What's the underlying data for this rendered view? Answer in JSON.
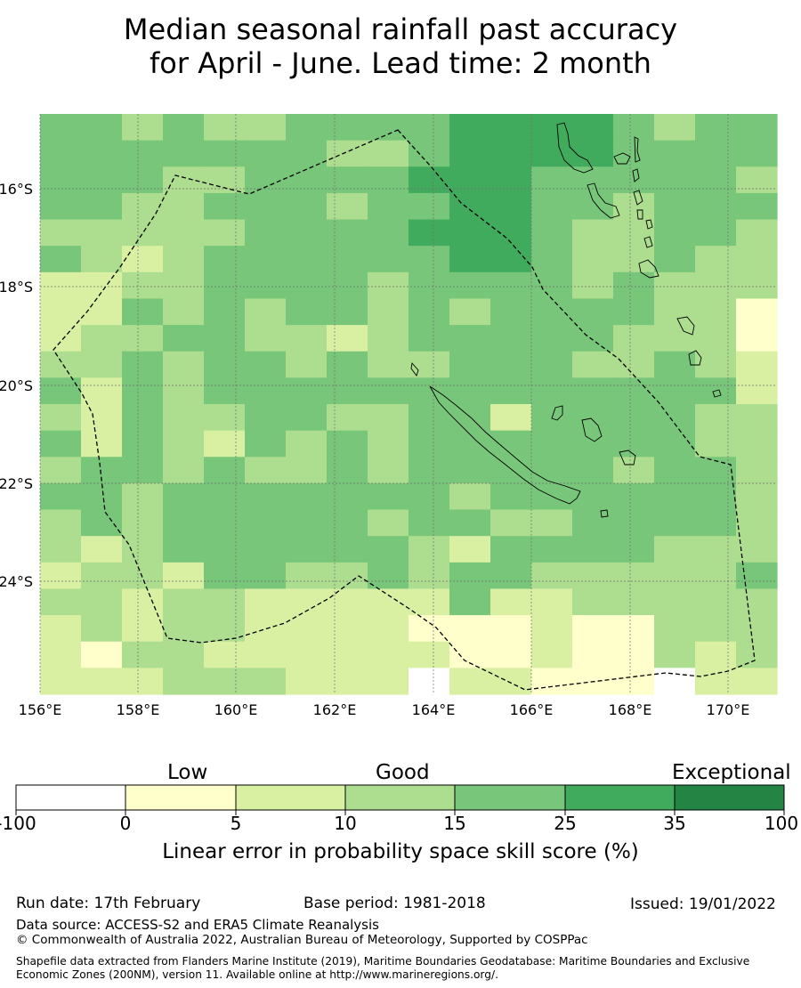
{
  "title": {
    "line1": "Median seasonal rainfall past accuracy",
    "line2": "for April - June. Lead time: 2 month"
  },
  "map": {
    "lon_labels": [
      "156°E",
      "158°E",
      "160°E",
      "162°E",
      "164°E",
      "166°E",
      "168°E",
      "170°E"
    ],
    "lat_labels": [
      "16°S",
      "18°S",
      "20°S",
      "22°S",
      "24°S"
    ],
    "extent": {
      "lon": [
        156,
        171
      ],
      "lat": [
        -14.5,
        -26.3
      ]
    },
    "boundary_style": "dashed",
    "coastline_color": "#000000"
  },
  "colorbar": {
    "categories": {
      "low": "Low",
      "good": "Good",
      "exceptional": "Exceptional"
    },
    "ticks": [
      "-100",
      "0",
      "5",
      "10",
      "15",
      "25",
      "35",
      "100"
    ],
    "colors": [
      "#ffffff",
      "#ffffcc",
      "#d9f0a3",
      "#addd8e",
      "#78c679",
      "#41ab5d",
      "#238443"
    ],
    "title": "Linear error in probability space skill score (%)"
  },
  "footer": {
    "run_date": "Run date: 17th February",
    "base_period": "Base period: 1981-2018",
    "issued": "Issued: 19/01/2022",
    "data_source": "Data source: ACCESS-S2 and ERA5 Climate Reanalysis",
    "copyright": "© Commonwealth of Australia 2022, Australian Bureau of Meteorology, Supported by COSPPac",
    "shapefile": "Shapefile data extracted from Flanders Marine Institute (2019), Maritime Boundaries Geodatabase: Maritime Boundaries and Exclusive Economic Zones (200NM), version 11. Available online at http://www.marineregions.org/."
  }
}
